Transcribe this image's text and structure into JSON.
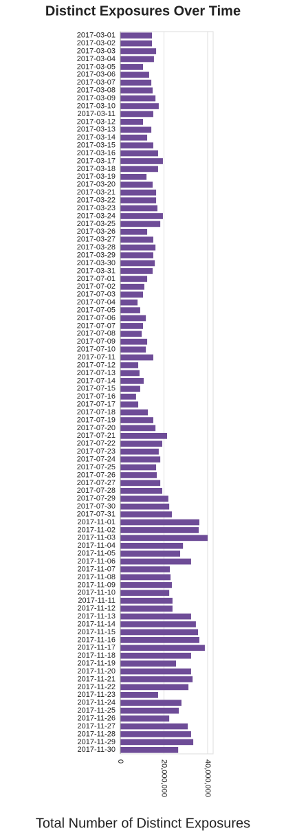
{
  "chart_data": {
    "type": "hbar",
    "title": "Distinct Exposures Over Time",
    "x_label": "Total Number of Distinct Exposures",
    "color": "#6e4c97",
    "grid": true,
    "xlim": [
      0,
      42500000
    ],
    "xticks": [
      0,
      {
        "value": 20000000,
        "label": "20,000,000"
      },
      {
        "value": 40000000,
        "label": "40,000,000"
      }
    ],
    "categories": [
      "2017-03-01",
      "2017-03-02",
      "2017-03-03",
      "2017-03-04",
      "2017-03-05",
      "2017-03-06",
      "2017-03-07",
      "2017-03-08",
      "2017-03-09",
      "2017-03-10",
      "2017-03-11",
      "2017-03-12",
      "2017-03-13",
      "2017-03-14",
      "2017-03-15",
      "2017-03-16",
      "2017-03-17",
      "2017-03-18",
      "2017-03-19",
      "2017-03-20",
      "2017-03-21",
      "2017-03-22",
      "2017-03-23",
      "2017-03-24",
      "2017-03-25",
      "2017-03-26",
      "2017-03-27",
      "2017-03-28",
      "2017-03-29",
      "2017-03-30",
      "2017-03-31",
      "2017-07-01",
      "2017-07-02",
      "2017-07-03",
      "2017-07-04",
      "2017-07-05",
      "2017-07-06",
      "2017-07-07",
      "2017-07-08",
      "2017-07-09",
      "2017-07-10",
      "2017-07-11",
      "2017-07-12",
      "2017-07-13",
      "2017-07-14",
      "2017-07-15",
      "2017-07-16",
      "2017-07-17",
      "2017-07-18",
      "2017-07-19",
      "2017-07-20",
      "2017-07-21",
      "2017-07-22",
      "2017-07-23",
      "2017-07-24",
      "2017-07-25",
      "2017-07-26",
      "2017-07-27",
      "2017-07-28",
      "2017-07-29",
      "2017-07-30",
      "2017-07-31",
      "2017-11-01",
      "2017-11-02",
      "2017-11-03",
      "2017-11-04",
      "2017-11-05",
      "2017-11-06",
      "2017-11-07",
      "2017-11-08",
      "2017-11-09",
      "2017-11-10",
      "2017-11-11",
      "2017-11-12",
      "2017-11-13",
      "2017-11-14",
      "2017-11-15",
      "2017-11-16",
      "2017-11-17",
      "2017-11-18",
      "2017-11-19",
      "2017-11-20",
      "2017-11-21",
      "2017-11-22",
      "2017-11-23",
      "2017-11-24",
      "2017-11-25",
      "2017-11-26",
      "2017-11-27",
      "2017-11-28",
      "2017-11-29",
      "2017-11-30"
    ],
    "values": [
      14500000,
      14500000,
      16400000,
      15400000,
      10400000,
      13200000,
      14200000,
      14800000,
      16100000,
      17600000,
      15100000,
      10400000,
      14200000,
      12300000,
      15100000,
      17300000,
      19500000,
      17300000,
      12000000,
      14800000,
      16400000,
      16400000,
      17000000,
      19500000,
      18300000,
      12300000,
      15100000,
      16100000,
      15100000,
      15800000,
      14800000,
      12300000,
      11000000,
      10400000,
      7900000,
      9100000,
      11700000,
      10400000,
      9800000,
      12300000,
      11700000,
      15100000,
      8200000,
      8800000,
      10700000,
      9100000,
      7200000,
      8200000,
      12600000,
      15100000,
      16100000,
      21400000,
      19200000,
      17600000,
      18300000,
      16400000,
      16700000,
      18300000,
      19200000,
      22000000,
      22400000,
      23600000,
      36200000,
      35900000,
      40000000,
      28700000,
      27400000,
      32400000,
      22700000,
      23000000,
      23600000,
      22400000,
      23900000,
      23900000,
      32400000,
      34600000,
      35600000,
      36200000,
      38700000,
      32400000,
      25500000,
      32400000,
      33100000,
      31200000,
      17300000,
      28000000,
      26800000,
      22400000,
      30900000,
      32400000,
      33400000,
      26500000
    ]
  }
}
